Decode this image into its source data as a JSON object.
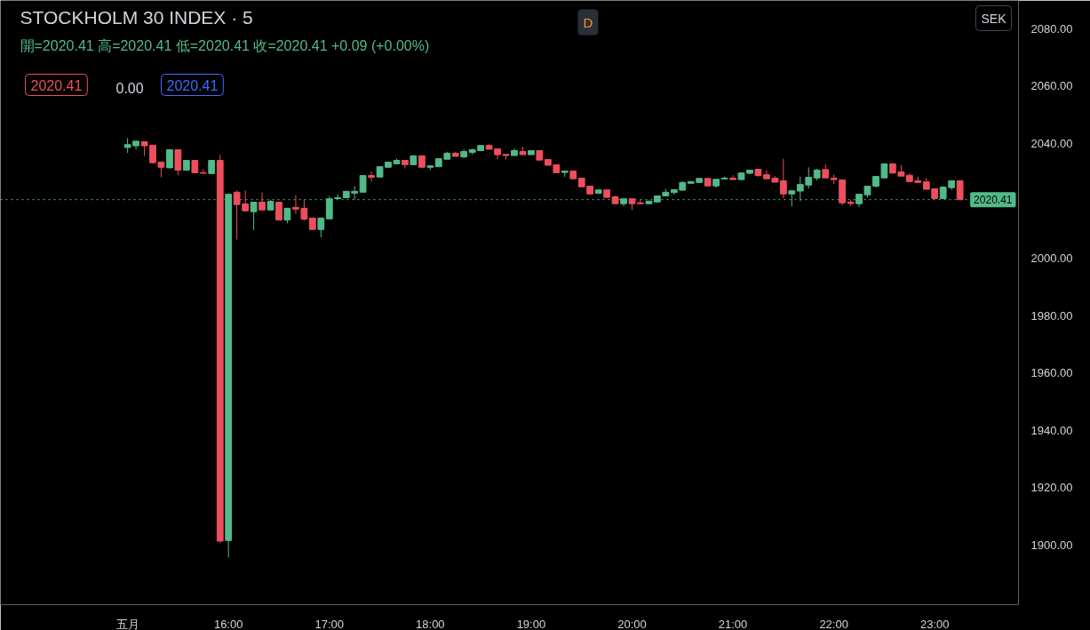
{
  "chart_data": {
    "type": "candlestick",
    "title": "STOCKHOLM 30 INDEX · 5",
    "subtitle": "開=2020.41 高=2020.41 低=2020.41 收=2020.41 +0.09 (+0.00%)",
    "annotations": [
      "2020.41",
      "0.00",
      "2020.41",
      "D",
      "SEK"
    ],
    "x": [
      15,
      15.083,
      15.167,
      15.25,
      15.333,
      15.417,
      15.5,
      15.583,
      15.667,
      15.75,
      15.833,
      15.917,
      16,
      16.083,
      16.167,
      16.25,
      16.333,
      16.417,
      16.5,
      16.583,
      16.667,
      16.75,
      16.833,
      16.917,
      17,
      17.083,
      17.167,
      17.25,
      17.333,
      17.417,
      17.5,
      17.583,
      17.667,
      17.75,
      17.833,
      17.917,
      18,
      18.083,
      18.167,
      18.25,
      18.333,
      18.417,
      18.5,
      18.583,
      18.667,
      18.75,
      18.833,
      18.917,
      19,
      19.083,
      19.167,
      19.25,
      19.333,
      19.417,
      19.5,
      19.583,
      19.667,
      19.75,
      19.833,
      19.917,
      20,
      20.083,
      20.167,
      20.25,
      20.333,
      20.417,
      20.5,
      20.583,
      20.667,
      20.75,
      20.833,
      20.917,
      21,
      21.083,
      21.167,
      21.25,
      21.333,
      21.417,
      21.5,
      21.583,
      21.667,
      21.75,
      21.833,
      21.917,
      22,
      22.083,
      22.167,
      22.25,
      22.333,
      22.417,
      22.5,
      22.583,
      22.667,
      22.75,
      22.833,
      22.917,
      23,
      23.083,
      23.167,
      23.25
    ],
    "ohlc": [
      [
        2038.6,
        2041.9,
        2036.7,
        2039.6
      ],
      [
        2039.2,
        2040.8,
        2037.9,
        2040.8
      ],
      [
        2040.6,
        2040.6,
        2035.7,
        2039.2
      ],
      [
        2039.4,
        2039.4,
        2032.9,
        2033.3
      ],
      [
        2033.5,
        2033.5,
        2028.2,
        2031.7
      ],
      [
        2031.5,
        2037.8,
        2031.4,
        2037.8
      ],
      [
        2037.8,
        2037.8,
        2028.9,
        2030.7
      ],
      [
        2030.7,
        2034.1,
        2030.7,
        2034.1
      ],
      [
        2034.1,
        2034.1,
        2029.6,
        2029.8
      ],
      [
        2029.8,
        2031.0,
        2029.6,
        2029.6
      ],
      [
        2029.5,
        2034.1,
        2029.5,
        2034.1
      ],
      [
        2034.1,
        2036.0,
        1900.6,
        1901.3
      ],
      [
        1901.5,
        2022.3,
        1895.6,
        2022.3
      ],
      [
        2023.0,
        2023.6,
        2006.5,
        2018.7
      ],
      [
        2018.9,
        2023.6,
        2016.5,
        2016.5
      ],
      [
        2016.2,
        2019.5,
        2009.8,
        2019.5
      ],
      [
        2019.5,
        2022.9,
        2016.8,
        2016.8
      ],
      [
        2016.8,
        2020.4,
        2016.6,
        2019.8
      ],
      [
        2019.5,
        2019.5,
        2013.1,
        2013.3
      ],
      [
        2013.3,
        2017.5,
        2012.1,
        2017.4
      ],
      [
        2017.7,
        2022.0,
        2015.5,
        2017.1
      ],
      [
        2017.4,
        2020.4,
        2013.1,
        2013.6
      ],
      [
        2014.0,
        2014.0,
        2010.0,
        2010.0
      ],
      [
        2010.0,
        2014.0,
        2007.2,
        2014.0
      ],
      [
        2013.7,
        2021.7,
        2013.7,
        2020.7
      ],
      [
        2020.8,
        2022.3,
        2020.8,
        2021.1
      ],
      [
        2021.1,
        2023.3,
        2021.1,
        2023.3
      ],
      [
        2022.7,
        2025.1,
        2020.4,
        2023.3
      ],
      [
        2023.0,
        2028.8,
        2023.0,
        2028.8
      ],
      [
        2028.8,
        2030.2,
        2026.7,
        2028.2
      ],
      [
        2028.3,
        2031.9,
        2028.3,
        2031.9
      ],
      [
        2031.7,
        2033.5,
        2031.7,
        2033.5
      ],
      [
        2032.9,
        2034.7,
        2032.9,
        2034.1
      ],
      [
        2034.1,
        2034.1,
        2031.3,
        2032.6
      ],
      [
        2032.6,
        2035.7,
        2032.6,
        2035.7
      ],
      [
        2035.7,
        2035.7,
        2031.7,
        2031.7
      ],
      [
        2031.7,
        2032.2,
        2030.8,
        2032.2
      ],
      [
        2031.9,
        2034.7,
        2031.9,
        2034.7
      ],
      [
        2034.5,
        2037.1,
        2034.5,
        2036.6
      ],
      [
        2036.6,
        2037.1,
        2035.5,
        2035.5
      ],
      [
        2035.3,
        2038.0,
        2034.9,
        2037.2
      ],
      [
        2036.9,
        2038.3,
        2036.1,
        2037.8
      ],
      [
        2037.5,
        2039.3,
        2037.5,
        2039.3
      ],
      [
        2039.3,
        2039.7,
        2038.0,
        2038.0
      ],
      [
        2038.1,
        2038.1,
        2034.5,
        2036.1
      ],
      [
        2036.2,
        2036.2,
        2034.5,
        2035.8
      ],
      [
        2035.8,
        2038.3,
        2035.8,
        2037.5
      ],
      [
        2037.2,
        2038.8,
        2036.1,
        2036.1
      ],
      [
        2036.1,
        2037.5,
        2036.1,
        2037.5
      ],
      [
        2037.5,
        2037.5,
        2034.2,
        2034.2
      ],
      [
        2034.4,
        2034.4,
        2032.4,
        2032.4
      ],
      [
        2032.6,
        2032.6,
        2029.6,
        2029.8
      ],
      [
        2029.9,
        2030.4,
        2028.3,
        2030.4
      ],
      [
        2030.4,
        2030.4,
        2027.7,
        2027.7
      ],
      [
        2027.9,
        2027.9,
        2024.9,
        2024.9
      ],
      [
        2025.1,
        2025.1,
        2022.4,
        2022.4
      ],
      [
        2022.6,
        2023.8,
        2022.6,
        2023.8
      ],
      [
        2023.8,
        2023.8,
        2021.2,
        2021.2
      ],
      [
        2021.4,
        2021.8,
        2019.0,
        2019.0
      ],
      [
        2019.0,
        2020.7,
        2018.1,
        2020.7
      ],
      [
        2020.7,
        2020.7,
        2016.8,
        2019.0
      ],
      [
        2019.3,
        2020.5,
        2019.0,
        2019.0
      ],
      [
        2019.0,
        2019.9,
        2018.8,
        2019.9
      ],
      [
        2019.6,
        2021.7,
        2019.6,
        2021.7
      ],
      [
        2021.7,
        2024.2,
        2021.7,
        2023.0
      ],
      [
        2022.9,
        2023.9,
        2022.2,
        2023.9
      ],
      [
        2023.7,
        2026.8,
        2023.7,
        2026.4
      ],
      [
        2026.1,
        2026.7,
        2026.1,
        2026.7
      ],
      [
        2026.4,
        2027.8,
        2026.4,
        2027.8
      ],
      [
        2027.8,
        2027.8,
        2025.2,
        2025.2
      ],
      [
        2025.2,
        2027.5,
        2024.6,
        2027.5
      ],
      [
        2027.6,
        2028.5,
        2027.6,
        2027.9
      ],
      [
        2027.9,
        2028.9,
        2027.4,
        2027.4
      ],
      [
        2027.4,
        2029.7,
        2027.4,
        2029.7
      ],
      [
        2029.6,
        2030.7,
        2029.3,
        2030.7
      ],
      [
        2031.0,
        2031.0,
        2028.4,
        2028.8
      ],
      [
        2029.1,
        2030.7,
        2027.7,
        2027.7
      ],
      [
        2027.9,
        2028.6,
        2026.5,
        2026.5
      ],
      [
        2027.0,
        2034.7,
        2020.9,
        2022.4
      ],
      [
        2022.4,
        2023.5,
        2018.1,
        2023.5
      ],
      [
        2023.4,
        2028.4,
        2019.9,
        2025.7
      ],
      [
        2025.5,
        2031.7,
        2024.3,
        2028.2
      ],
      [
        2028.0,
        2031.2,
        2027.1,
        2030.7
      ],
      [
        2030.9,
        2032.8,
        2028.0,
        2028.0
      ],
      [
        2027.9,
        2029.1,
        2025.9,
        2027.4
      ],
      [
        2027.3,
        2027.3,
        2018.5,
        2019.3
      ],
      [
        2019.5,
        2020.4,
        2018.2,
        2019.1
      ],
      [
        2019.0,
        2022.3,
        2017.8,
        2022.3
      ],
      [
        2022.1,
        2025.1,
        2021.2,
        2025.1
      ],
      [
        2025.1,
        2028.5,
        2024.6,
        2028.5
      ],
      [
        2028.0,
        2032.9,
        2028.0,
        2032.9
      ],
      [
        2032.9,
        2032.9,
        2029.4,
        2029.7
      ],
      [
        2030.1,
        2032.5,
        2028.6,
        2028.6
      ],
      [
        2028.9,
        2029.5,
        2026.5,
        2026.7
      ],
      [
        2027.0,
        2028.5,
        2026.4,
        2026.4
      ],
      [
        2026.6,
        2027.9,
        2024.0,
        2024.0
      ],
      [
        2024.2,
        2024.2,
        2020.8,
        2020.8
      ],
      [
        2020.8,
        2024.8,
        2020.8,
        2024.8
      ],
      [
        2024.6,
        2027.0,
        2023.8,
        2027.0
      ],
      [
        2027.0,
        2027.0,
        2020.4,
        2020.4
      ]
    ],
    "colors": [
      "#51ba89",
      "#51ba89",
      "#ee4e5d",
      "#ee4e5d",
      "#ee4e5d",
      "#51ba89",
      "#ee4e5d",
      "#51ba89",
      "#ee4e5d",
      "#ee4e5d",
      "#51ba89",
      "#ee4e5d",
      "#51ba89",
      "#ee4e5d",
      "#ee4e5d",
      "#51ba89",
      "#ee4e5d",
      "#51ba89",
      "#ee4e5d",
      "#51ba89",
      "#ee4e5d",
      "#ee4e5d",
      "#ee4e5d",
      "#51ba89",
      "#51ba89",
      "#51ba89",
      "#51ba89",
      "#51ba89",
      "#51ba89",
      "#ee4e5d",
      "#51ba89",
      "#51ba89",
      "#51ba89",
      "#ee4e5d",
      "#51ba89",
      "#ee4e5d",
      "#51ba89",
      "#51ba89",
      "#51ba89",
      "#ee4e5d",
      "#51ba89",
      "#51ba89",
      "#51ba89",
      "#ee4e5d",
      "#ee4e5d",
      "#ee4e5d",
      "#51ba89",
      "#ee4e5d",
      "#51ba89",
      "#ee4e5d",
      "#ee4e5d",
      "#ee4e5d",
      "#51ba89",
      "#ee4e5d",
      "#ee4e5d",
      "#ee4e5d",
      "#51ba89",
      "#ee4e5d",
      "#ee4e5d",
      "#51ba89",
      "#ee4e5d",
      "#ee4e5d",
      "#51ba89",
      "#51ba89",
      "#51ba89",
      "#51ba89",
      "#51ba89",
      "#51ba89",
      "#51ba89",
      "#ee4e5d",
      "#51ba89",
      "#51ba89",
      "#ee4e5d",
      "#51ba89",
      "#51ba89",
      "#ee4e5d",
      "#ee4e5d",
      "#ee4e5d",
      "#ee4e5d",
      "#51ba89",
      "#51ba89",
      "#51ba89",
      "#51ba89",
      "#ee4e5d",
      "#ee4e5d",
      "#ee4e5d",
      "#ee4e5d",
      "#51ba89",
      "#51ba89",
      "#51ba89",
      "#51ba89",
      "#ee4e5d",
      "#ee4e5d",
      "#ee4e5d",
      "#ee4e5d",
      "#ee4e5d",
      "#ee4e5d",
      "#51ba89",
      "#51ba89",
      "#ee4e5d"
    ],
    "xlim": [
      13.74,
      23.83
    ],
    "xticks": [
      {
        "value": 15,
        "label": "五月"
      },
      {
        "value": 16,
        "label": "16:00"
      },
      {
        "value": 17,
        "label": "17:00"
      },
      {
        "value": 18,
        "label": "18:00"
      },
      {
        "value": 19,
        "label": "19:00"
      },
      {
        "value": 20,
        "label": "20:00"
      },
      {
        "value": 21,
        "label": "21:00"
      },
      {
        "value": 22,
        "label": "22:00"
      },
      {
        "value": 23,
        "label": "23:00"
      }
    ],
    "ylim": [
      1879.1,
      2089.9
    ],
    "yticks": [
      {
        "value": 1900,
        "label": "1900.00"
      },
      {
        "value": 1920,
        "label": "1920.00"
      },
      {
        "value": 1940,
        "label": "1940.00"
      },
      {
        "value": 1960,
        "label": "1960.00"
      },
      {
        "value": 1980,
        "label": "1980.00"
      },
      {
        "value": 2000,
        "label": "2000.00"
      },
      {
        "value": 2040,
        "label": "2040.00"
      },
      {
        "value": 2060,
        "label": "2060.00"
      },
      {
        "value": 2080,
        "label": "2080.00"
      }
    ],
    "ref_lines": [
      {
        "axis": "y",
        "value": 2020.41,
        "label": "2020.41",
        "color": "#51ba89",
        "line_style": "dotted"
      }
    ],
    "grid": false
  }
}
